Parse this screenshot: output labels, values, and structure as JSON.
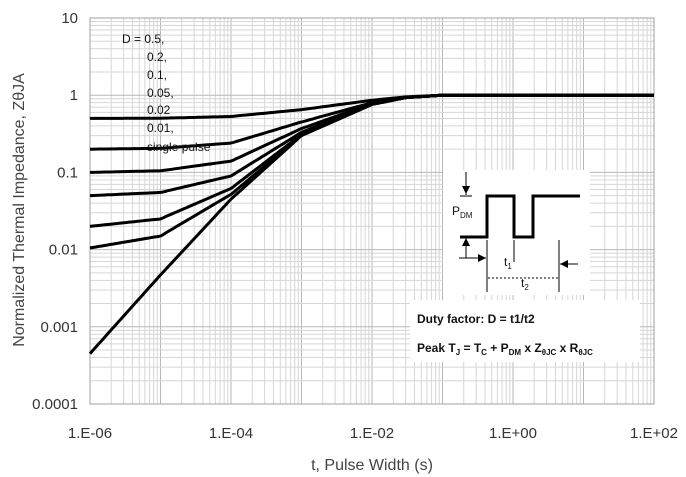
{
  "chart_data": {
    "type": "line",
    "title": "",
    "xlabel": "t, Pulse Width (s)",
    "ylabel": "Normalized Thermal Impedance, ZθJA",
    "x_scale": "log",
    "y_scale": "log",
    "xlim": [
      1e-06,
      100
    ],
    "ylim": [
      0.0001,
      10
    ],
    "x_ticks": [
      {
        "value": 1e-06,
        "label": "1.E-06"
      },
      {
        "value": 0.0001,
        "label": "1.E-04"
      },
      {
        "value": 0.01,
        "label": "1.E-02"
      },
      {
        "value": 1,
        "label": "1.E+00"
      },
      {
        "value": 100,
        "label": "1.E+02"
      }
    ],
    "y_ticks": [
      {
        "value": 10,
        "label": "10"
      },
      {
        "value": 1,
        "label": "1"
      },
      {
        "value": 0.1,
        "label": "0.1"
      },
      {
        "value": 0.01,
        "label": "0.01"
      },
      {
        "value": 0.001,
        "label": "0.001"
      },
      {
        "value": 0.0001,
        "label": "0.0001"
      }
    ],
    "grid": true,
    "legend": {
      "placement": "top-left",
      "entries": [
        "D = 0.5,",
        "0.2,",
        "0.1,",
        "0.05,",
        "0.02",
        "0.01,",
        "single pulse"
      ]
    },
    "series": [
      {
        "duty": 0.5,
        "x": [
          1e-06,
          1e-05,
          0.0001,
          0.001,
          0.01,
          0.03,
          0.1,
          1,
          10,
          100
        ],
        "values": [
          0.5,
          0.503,
          0.53,
          0.65,
          0.86,
          0.95,
          1.0,
          1.0,
          1.0,
          1.0
        ]
      },
      {
        "duty": 0.2,
        "x": [
          1e-06,
          1e-05,
          0.0001,
          0.001,
          0.01,
          0.03,
          0.1,
          1,
          10,
          100
        ],
        "values": [
          0.2,
          0.205,
          0.24,
          0.45,
          0.8,
          0.94,
          1.0,
          1.0,
          1.0,
          1.0
        ]
      },
      {
        "duty": 0.1,
        "x": [
          1e-06,
          1e-05,
          0.0001,
          0.001,
          0.01,
          0.03,
          0.1,
          1,
          10,
          100
        ],
        "values": [
          0.1,
          0.105,
          0.14,
          0.37,
          0.78,
          0.93,
          1.0,
          1.0,
          1.0,
          1.0
        ]
      },
      {
        "duty": 0.05,
        "x": [
          1e-06,
          1e-05,
          0.0001,
          0.001,
          0.01,
          0.03,
          0.1,
          1,
          10,
          100
        ],
        "values": [
          0.05,
          0.055,
          0.09,
          0.33,
          0.77,
          0.93,
          1.0,
          1.0,
          1.0,
          1.0
        ]
      },
      {
        "duty": 0.02,
        "x": [
          1e-06,
          1e-05,
          0.0001,
          0.001,
          0.01,
          0.03,
          0.1,
          1,
          10,
          100
        ],
        "values": [
          0.02,
          0.025,
          0.062,
          0.31,
          0.76,
          0.93,
          1.0,
          1.0,
          1.0,
          1.0
        ]
      },
      {
        "duty": 0.01,
        "x": [
          1e-06,
          1e-05,
          0.0001,
          0.001,
          0.01,
          0.03,
          0.1,
          1,
          10,
          100
        ],
        "values": [
          0.0105,
          0.015,
          0.052,
          0.3,
          0.76,
          0.93,
          1.0,
          1.0,
          1.0,
          1.0
        ]
      },
      {
        "duty": "single pulse",
        "x": [
          1e-06,
          1e-05,
          0.0001,
          0.001,
          0.01,
          0.03,
          0.1,
          1,
          10,
          100
        ],
        "values": [
          0.00045,
          0.0047,
          0.045,
          0.3,
          0.76,
          0.93,
          1.0,
          1.0,
          1.0,
          1.0
        ]
      }
    ],
    "annotations": {
      "inset_pdm": "P",
      "inset_pdm_sub": "DM",
      "inset_t1": "t",
      "inset_t1_sub": "1",
      "inset_t2": "t",
      "inset_t2_sub": "2",
      "duty_factor": "Duty factor: D = t1/t2",
      "peak_formula": [
        {
          "text": "Peak T",
          "sub": false
        },
        {
          "text": "J",
          "sub": true
        },
        {
          "text": " = T",
          "sub": false
        },
        {
          "text": "C",
          "sub": true
        },
        {
          "text": " + P",
          "sub": false
        },
        {
          "text": "DM",
          "sub": true
        },
        {
          "text": " x Z",
          "sub": false
        },
        {
          "text": "θJC",
          "sub": true
        },
        {
          "text": " x R",
          "sub": false
        },
        {
          "text": "θJC",
          "sub": true
        }
      ]
    }
  }
}
